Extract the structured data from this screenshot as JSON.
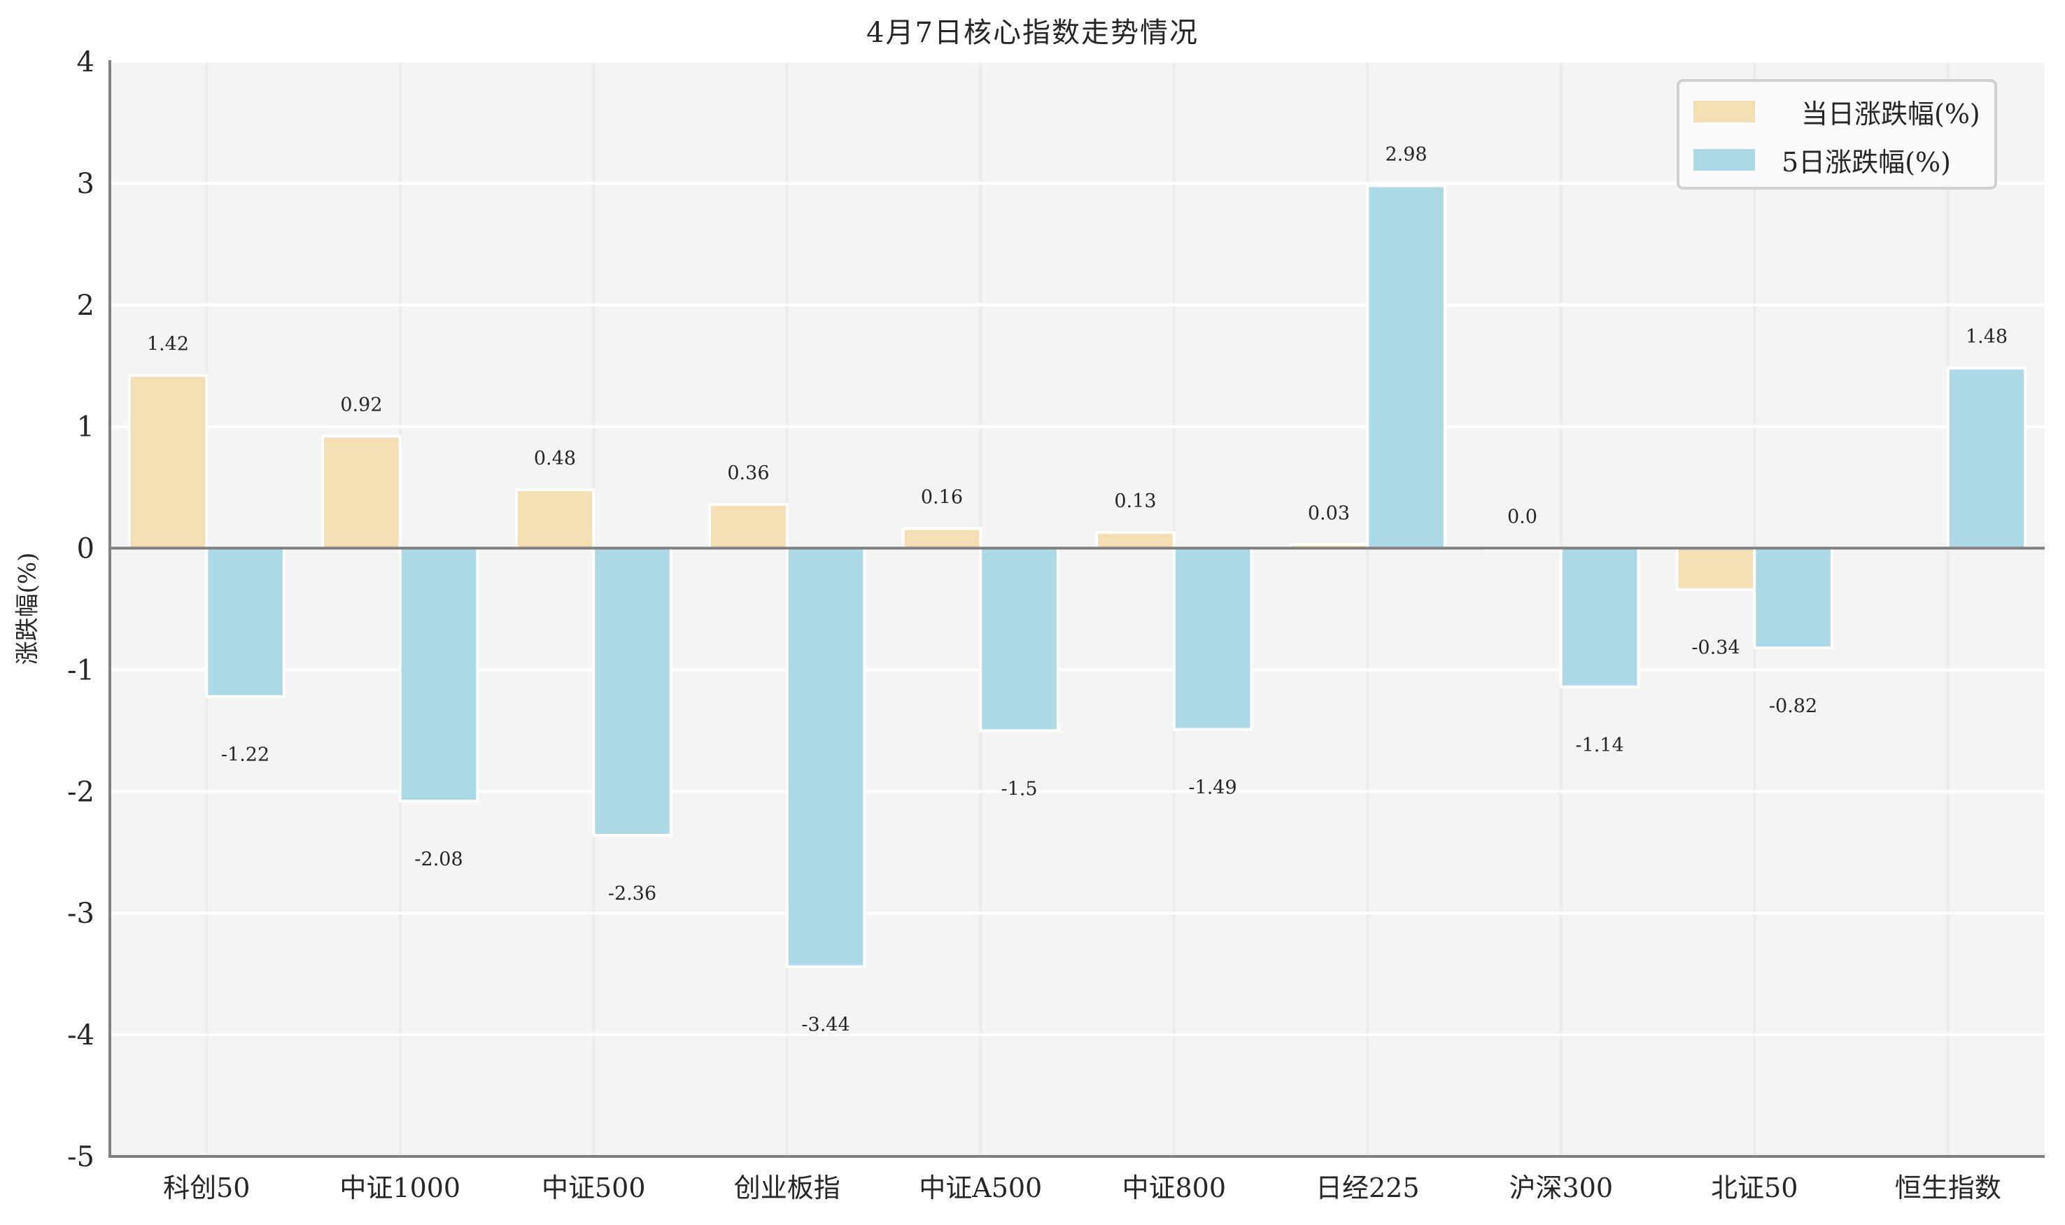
{
  "chart_data": {
    "type": "bar",
    "title": "4月7日核心指数走势情况",
    "xlabel": "",
    "ylabel": "涨跌幅(%)",
    "ylim": [
      -5,
      4
    ],
    "yticks": [
      4,
      3,
      2,
      1,
      0,
      -1,
      -2,
      -3,
      -4,
      -5
    ],
    "grid": true,
    "legend_position": "upper right",
    "categories": [
      "科创50",
      "中证1000",
      "中证500",
      "创业板指",
      "中证A500",
      "中证800",
      "日经225",
      "沪深300",
      "北证50",
      "恒生指数"
    ],
    "series": [
      {
        "name": "当日涨跌幅(%)",
        "color": "#F5DEB3",
        "values": [
          1.42,
          0.92,
          0.48,
          0.36,
          0.16,
          0.13,
          0.03,
          0.0,
          -0.34,
          null
        ],
        "labels": [
          "1.42",
          "0.92",
          "0.48",
          "0.36",
          "0.16",
          "0.13",
          "0.03",
          "0.0",
          "-0.34",
          null
        ]
      },
      {
        "name": "5日涨跌幅(%)",
        "color": "#ADD8E6",
        "values": [
          -1.22,
          -2.08,
          -2.36,
          -3.44,
          -1.5,
          -1.49,
          2.98,
          -1.14,
          -0.82,
          1.48
        ],
        "labels": [
          "-1.22",
          "-2.08",
          "-2.36",
          "-3.44",
          "-1.5",
          "-1.49",
          "2.98",
          "-1.14",
          "-0.82",
          "1.48"
        ]
      }
    ]
  },
  "header": {
    "title": "4月7日核心指数走势情况"
  },
  "axes": {
    "ylabel": "涨跌幅(%)"
  },
  "legend": {
    "items": [
      {
        "label": "当日涨跌幅(%)",
        "color": "#F5DEB3"
      },
      {
        "label": "5日涨跌幅(%)",
        "color": "#ADD8E6"
      }
    ]
  },
  "style": {
    "plot_bg": "#F4F4F4",
    "grid_color": "#FFFFFF",
    "vgrid_color": "#EBEBEB",
    "spine_color": "#808080",
    "zero_line_color": "#808080"
  }
}
